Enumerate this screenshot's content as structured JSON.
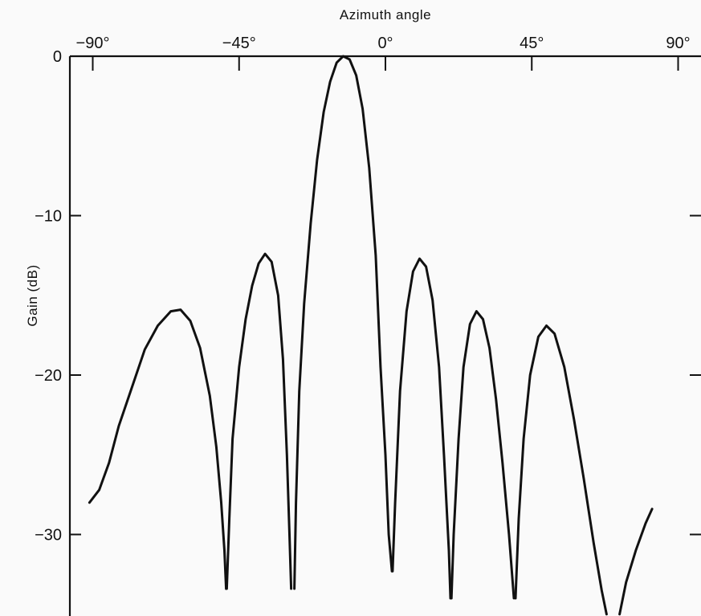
{
  "chart_data": {
    "type": "line",
    "xlabel": "Azimuth angle",
    "ylabel": "Gain (dB)",
    "xlim": [
      -92,
      92
    ],
    "ylim": [
      -35,
      0
    ],
    "x_axis_position": "top",
    "x_ticks": [
      {
        "value": -90,
        "label": "−90°"
      },
      {
        "value": -45,
        "label": "−45°"
      },
      {
        "value": 0,
        "label": "0°"
      },
      {
        "value": 45,
        "label": "45°"
      },
      {
        "value": 90,
        "label": "90°"
      }
    ],
    "y_ticks": [
      {
        "value": 0,
        "label": "0"
      },
      {
        "value": -10,
        "label": "−10"
      },
      {
        "value": -20,
        "label": "−20"
      },
      {
        "value": -30,
        "label": "−30"
      }
    ],
    "grid": false,
    "colors": {
      "line": "#111111",
      "axis": "#111111",
      "background": "#fafafa"
    },
    "series": [
      {
        "segments": [
          [
            [
              -91,
              -28.0
            ],
            [
              -88,
              -27.2
            ],
            [
              -85,
              -25.5
            ],
            [
              -82,
              -23.2
            ],
            [
              -78,
              -20.8
            ],
            [
              -74,
              -18.4
            ],
            [
              -70,
              -16.9
            ],
            [
              -66,
              -16.0
            ],
            [
              -63,
              -15.9
            ],
            [
              -60,
              -16.6
            ],
            [
              -57,
              -18.3
            ],
            [
              -54,
              -21.3
            ],
            [
              -52,
              -24.5
            ],
            [
              -50.5,
              -28.0
            ],
            [
              -49.5,
              -31.0
            ],
            [
              -49,
              -33.4
            ]
          ],
          [
            [
              -48.8,
              -33.4
            ],
            [
              -48,
              -29.0
            ],
            [
              -47,
              -24.0
            ],
            [
              -45,
              -19.5
            ],
            [
              -43,
              -16.5
            ],
            [
              -41,
              -14.4
            ],
            [
              -39,
              -13.0
            ],
            [
              -37,
              -12.4
            ],
            [
              -35,
              -12.9
            ],
            [
              -33,
              -15.0
            ],
            [
              -31.5,
              -19.0
            ],
            [
              -30.3,
              -25.0
            ],
            [
              -29.5,
              -30.0
            ],
            [
              -29,
              -33.4
            ]
          ],
          [
            [
              -28,
              -33.4
            ],
            [
              -27.5,
              -28.0
            ],
            [
              -26.5,
              -21.0
            ],
            [
              -25,
              -15.5
            ],
            [
              -23,
              -10.5
            ],
            [
              -21,
              -6.5
            ],
            [
              -19,
              -3.5
            ],
            [
              -17,
              -1.6
            ],
            [
              -15,
              -0.4
            ],
            [
              -13,
              0.0
            ],
            [
              -11,
              -0.2
            ],
            [
              -9,
              -1.2
            ],
            [
              -7,
              -3.3
            ],
            [
              -5,
              -7.0
            ],
            [
              -3,
              -12.5
            ],
            [
              -1.5,
              -19.5
            ],
            [
              0,
              -25.0
            ],
            [
              1,
              -30.0
            ],
            [
              2,
              -32.3
            ]
          ],
          [
            [
              2.2,
              -32.3
            ],
            [
              3,
              -28.0
            ],
            [
              4.5,
              -21.0
            ],
            [
              6.5,
              -16.0
            ],
            [
              8.5,
              -13.5
            ],
            [
              10.5,
              -12.7
            ],
            [
              12.5,
              -13.2
            ],
            [
              14.5,
              -15.3
            ],
            [
              16.5,
              -19.5
            ],
            [
              18,
              -25.0
            ],
            [
              19.5,
              -31.0
            ],
            [
              20,
              -34.0
            ]
          ],
          [
            [
              20.3,
              -34.0
            ],
            [
              21,
              -30.0
            ],
            [
              22.5,
              -24.0
            ],
            [
              24,
              -19.5
            ],
            [
              26,
              -16.8
            ],
            [
              28,
              -16.0
            ],
            [
              30,
              -16.5
            ],
            [
              32,
              -18.3
            ],
            [
              34,
              -21.5
            ],
            [
              36,
              -25.5
            ],
            [
              38,
              -30.0
            ],
            [
              39.5,
              -34.0
            ]
          ],
          [
            [
              40,
              -34.0
            ],
            [
              41,
              -29.0
            ],
            [
              42.5,
              -24.0
            ],
            [
              44.5,
              -20.0
            ],
            [
              47,
              -17.6
            ],
            [
              49.5,
              -16.9
            ],
            [
              52,
              -17.4
            ],
            [
              55,
              -19.5
            ],
            [
              58,
              -22.8
            ],
            [
              61,
              -26.5
            ],
            [
              64,
              -30.5
            ],
            [
              66.5,
              -33.5
            ],
            [
              68,
              -35.0
            ]
          ],
          [
            [
              72,
              -35.0
            ],
            [
              74,
              -33.0
            ],
            [
              77,
              -31.0
            ],
            [
              80,
              -29.3
            ],
            [
              82,
              -28.4
            ]
          ]
        ]
      }
    ]
  }
}
